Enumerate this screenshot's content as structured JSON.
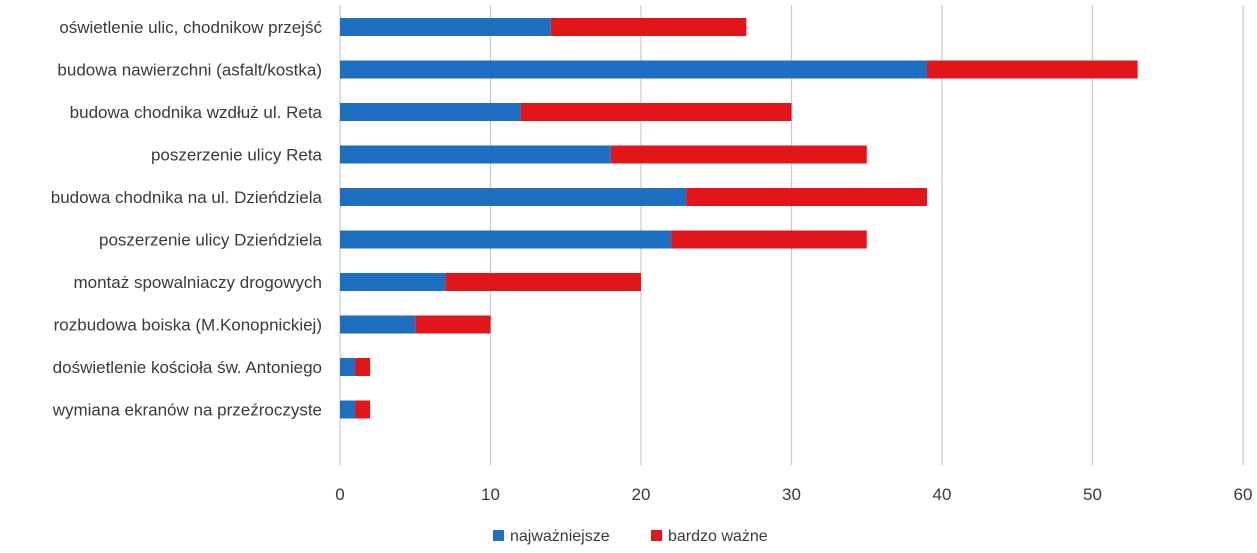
{
  "chart_data": {
    "type": "bar",
    "orientation": "horizontal",
    "stacked": true,
    "title": "",
    "xlabel": "",
    "ylabel": "",
    "categories": [
      "oświetlenie ulic, chodnikow przejść",
      "budowa nawierzchni (asfalt/kostka)",
      "budowa chodnika wzdłuż ul. Reta",
      "poszerzenie ulicy Reta",
      "budowa chodnika na ul. Dzieńdziela",
      "poszerzenie ulicy Dzieńdziela",
      "montaż spowalniaczy drogowych",
      "rozbudowa boiska (M.Konopnickiej)",
      "doświetlenie kościoła św. Antoniego",
      "wymiana ekranów na przeźroczyste"
    ],
    "series": [
      {
        "name": "najważniejsze",
        "color": "#1f6fc0",
        "values": [
          14,
          39,
          12,
          18,
          23,
          22,
          7,
          5,
          1,
          1
        ]
      },
      {
        "name": "bardzo ważne",
        "color": "#e0161b",
        "values": [
          13,
          14,
          18,
          17,
          16,
          13,
          13,
          5,
          1,
          1
        ]
      }
    ],
    "xlim": [
      0,
      60
    ],
    "xticks": [
      "0",
      "10",
      "20",
      "30",
      "40",
      "50",
      "60"
    ],
    "grid": true,
    "legend_position": "bottom"
  }
}
